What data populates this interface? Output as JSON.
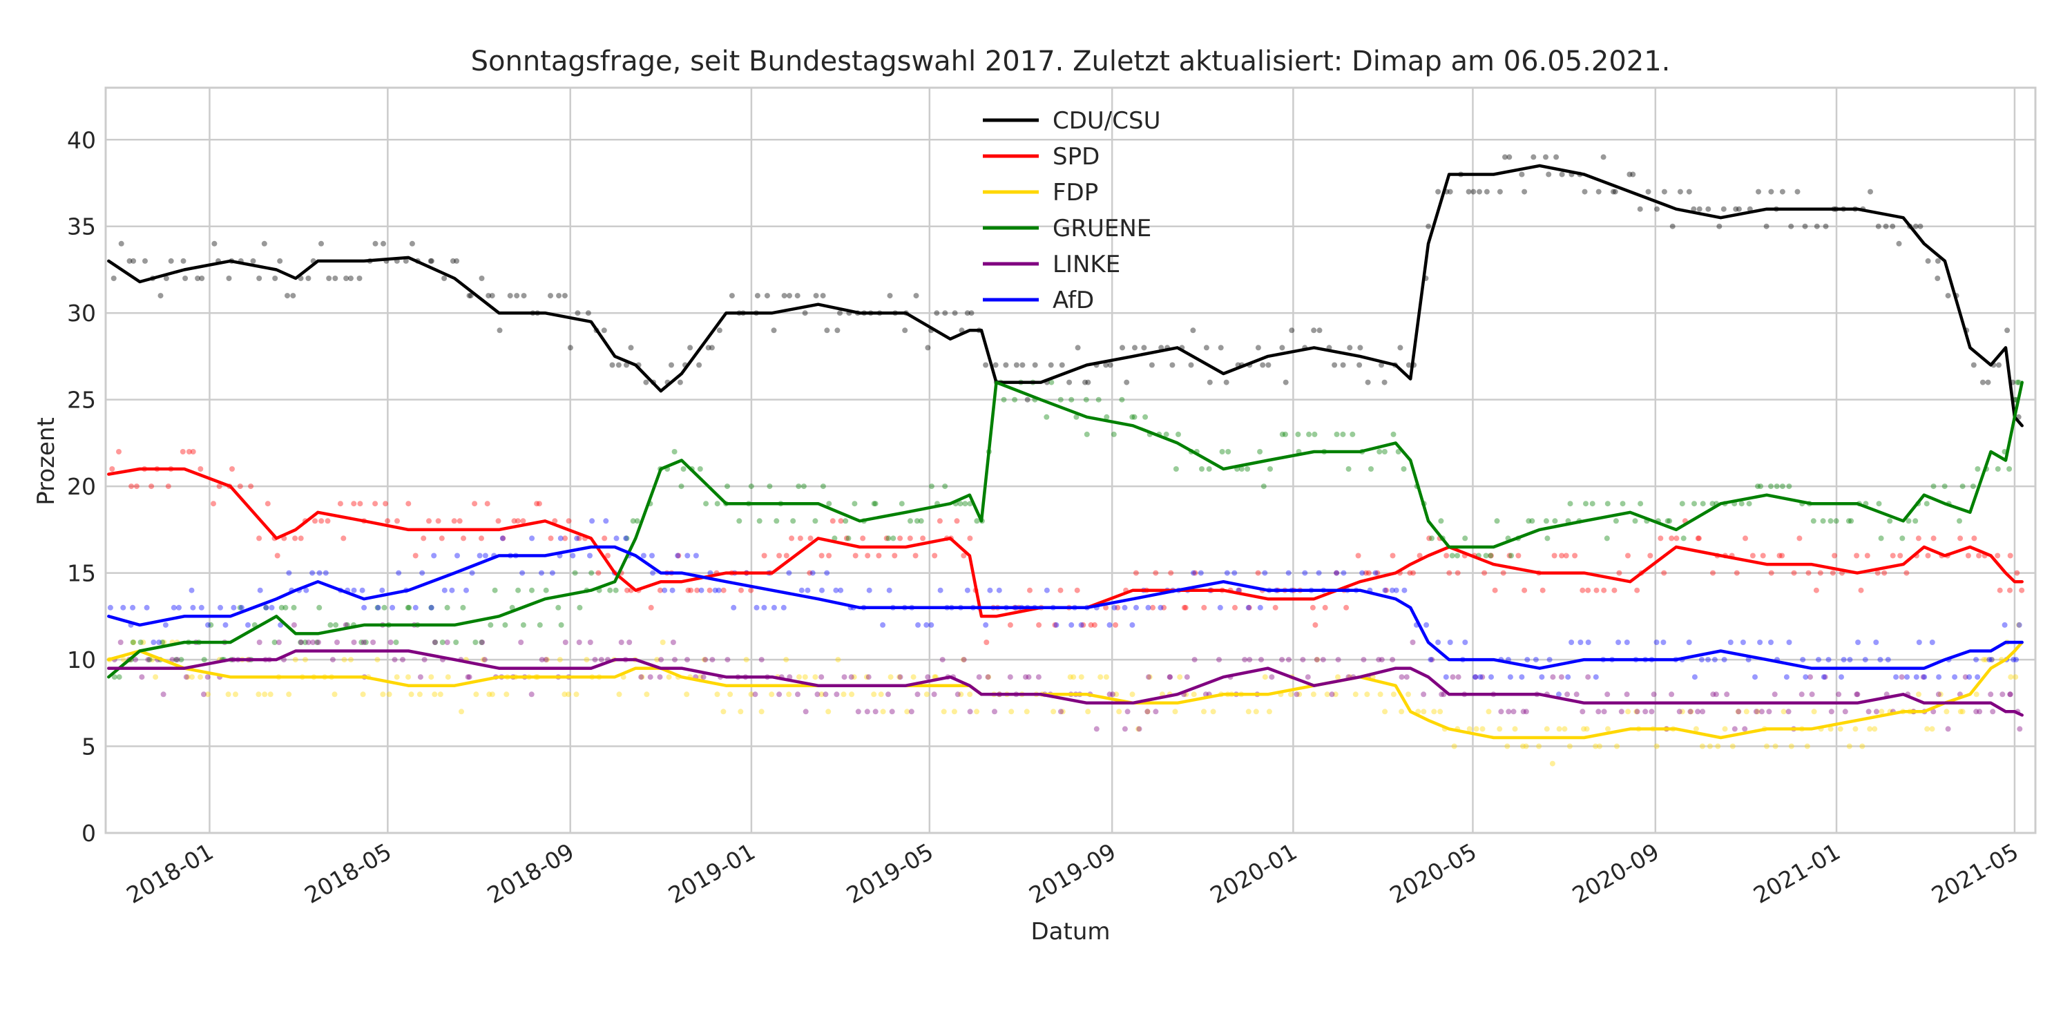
{
  "chart_data": {
    "type": "line",
    "title": "Sonntagsfrage, seit Bundestagswahl 2017. Zuletzt aktualisiert: Dimap am 06.05.2021.",
    "xlabel": "Datum",
    "ylabel": "Prozent",
    "xlim": [
      "2017-10-23",
      "2021-05-15"
    ],
    "ylim": [
      0,
      43
    ],
    "x_ticks": [
      "2018-01",
      "2018-05",
      "2018-09",
      "2019-01",
      "2019-05",
      "2019-09",
      "2020-01",
      "2020-05",
      "2020-09",
      "2021-01",
      "2021-05"
    ],
    "y_ticks": [
      0,
      5,
      10,
      15,
      20,
      25,
      30,
      35,
      40
    ],
    "grid": true,
    "legend_position": "top-center",
    "dates": [
      "2017-10-25",
      "2017-11-15",
      "2017-12-15",
      "2018-01-15",
      "2018-02-15",
      "2018-02-28",
      "2018-03-15",
      "2018-04-15",
      "2018-05-15",
      "2018-06-15",
      "2018-07-15",
      "2018-08-15",
      "2018-09-15",
      "2018-10-01",
      "2018-10-15",
      "2018-11-01",
      "2018-11-15",
      "2018-12-15",
      "2019-01-15",
      "2019-02-15",
      "2019-03-15",
      "2019-04-15",
      "2019-05-15",
      "2019-05-28",
      "2019-06-05",
      "2019-06-15",
      "2019-07-15",
      "2019-08-15",
      "2019-09-15",
      "2019-10-15",
      "2019-11-15",
      "2019-12-15",
      "2020-01-15",
      "2020-02-15",
      "2020-03-10",
      "2020-03-20",
      "2020-04-01",
      "2020-04-15",
      "2020-05-15",
      "2020-06-15",
      "2020-07-15",
      "2020-08-15",
      "2020-09-15",
      "2020-10-15",
      "2020-11-15",
      "2020-12-15",
      "2021-01-15",
      "2021-02-15",
      "2021-03-01",
      "2021-03-15",
      "2021-04-01",
      "2021-04-15",
      "2021-04-25",
      "2021-05-01",
      "2021-05-06"
    ],
    "series": [
      {
        "name": "CDU/CSU",
        "color": "#000000",
        "values": [
          33.0,
          31.8,
          32.5,
          33.0,
          32.5,
          32.0,
          33.0,
          33.0,
          33.2,
          32.0,
          30.0,
          30.0,
          29.5,
          27.5,
          27.0,
          25.5,
          26.5,
          30.0,
          30.0,
          30.5,
          30.0,
          30.0,
          28.5,
          29.0,
          29.0,
          26.0,
          26.0,
          27.0,
          27.5,
          28.0,
          26.5,
          27.5,
          28.0,
          27.5,
          27.0,
          26.2,
          34.0,
          38.0,
          38.0,
          38.5,
          38.0,
          37.0,
          36.0,
          35.5,
          36.0,
          36.0,
          36.0,
          35.5,
          34.0,
          33.0,
          28.0,
          27.0,
          28.0,
          24.0,
          23.5
        ]
      },
      {
        "name": "SPD",
        "color": "#ff0000",
        "values": [
          20.7,
          21.0,
          21.0,
          20.0,
          17.0,
          17.5,
          18.5,
          18.0,
          17.5,
          17.5,
          17.5,
          18.0,
          17.0,
          15.0,
          14.0,
          14.5,
          14.5,
          15.0,
          15.0,
          17.0,
          16.5,
          16.5,
          17.0,
          16.0,
          12.5,
          12.5,
          13.0,
          13.0,
          14.0,
          14.0,
          14.0,
          13.5,
          13.5,
          14.5,
          15.0,
          15.5,
          16.0,
          16.5,
          15.5,
          15.0,
          15.0,
          14.5,
          16.5,
          16.0,
          15.5,
          15.5,
          15.0,
          15.5,
          16.5,
          16.0,
          16.5,
          16.0,
          15.0,
          14.5,
          14.5
        ]
      },
      {
        "name": "FDP",
        "color": "#ffd700",
        "values": [
          10.0,
          10.5,
          9.5,
          9.0,
          9.0,
          9.0,
          9.0,
          9.0,
          8.5,
          8.5,
          9.0,
          9.0,
          9.0,
          9.0,
          9.5,
          9.5,
          9.0,
          8.5,
          8.5,
          8.5,
          8.5,
          8.5,
          8.5,
          8.5,
          8.0,
          8.0,
          8.0,
          8.0,
          7.5,
          7.5,
          8.0,
          8.0,
          8.5,
          9.0,
          8.5,
          7.0,
          6.5,
          6.0,
          5.5,
          5.5,
          5.5,
          6.0,
          6.0,
          5.5,
          6.0,
          6.0,
          6.5,
          7.0,
          7.0,
          7.5,
          8.0,
          9.5,
          10.0,
          10.5,
          11.0
        ]
      },
      {
        "name": "GRUENE",
        "color": "#008000",
        "values": [
          9.0,
          10.5,
          11.0,
          11.0,
          12.5,
          11.5,
          11.5,
          12.0,
          12.0,
          12.0,
          12.5,
          13.5,
          14.0,
          14.5,
          17.0,
          21.0,
          21.5,
          19.0,
          19.0,
          19.0,
          18.0,
          18.5,
          19.0,
          19.5,
          18.0,
          26.0,
          25.0,
          24.0,
          23.5,
          22.5,
          21.0,
          21.5,
          22.0,
          22.0,
          22.5,
          21.5,
          18.0,
          16.5,
          16.5,
          17.5,
          18.0,
          18.5,
          17.5,
          19.0,
          19.5,
          19.0,
          19.0,
          18.0,
          19.5,
          19.0,
          18.5,
          22.0,
          21.5,
          24.0,
          26.0
        ]
      },
      {
        "name": "LINKE",
        "color": "#800080",
        "values": [
          9.5,
          9.5,
          9.5,
          10.0,
          10.0,
          10.5,
          10.5,
          10.5,
          10.5,
          10.0,
          9.5,
          9.5,
          9.5,
          10.0,
          10.0,
          9.5,
          9.5,
          9.0,
          9.0,
          8.5,
          8.5,
          8.5,
          9.0,
          8.5,
          8.0,
          8.0,
          8.0,
          7.5,
          7.5,
          8.0,
          9.0,
          9.5,
          8.5,
          9.0,
          9.5,
          9.5,
          9.0,
          8.0,
          8.0,
          8.0,
          7.5,
          7.5,
          7.5,
          7.5,
          7.5,
          7.5,
          7.5,
          8.0,
          7.5,
          7.5,
          7.5,
          7.5,
          7.0,
          7.0,
          6.8
        ]
      },
      {
        "name": "AfD",
        "color": "#0000ff",
        "values": [
          12.5,
          12.0,
          12.5,
          12.5,
          13.5,
          14.0,
          14.5,
          13.5,
          14.0,
          15.0,
          16.0,
          16.0,
          16.5,
          16.5,
          16.0,
          15.0,
          15.0,
          14.5,
          14.0,
          13.5,
          13.0,
          13.0,
          13.0,
          13.0,
          13.0,
          13.0,
          13.0,
          13.0,
          13.5,
          14.0,
          14.5,
          14.0,
          14.0,
          14.0,
          13.5,
          13.0,
          11.0,
          10.0,
          10.0,
          9.5,
          10.0,
          10.0,
          10.0,
          10.5,
          10.0,
          9.5,
          9.5,
          9.5,
          9.5,
          10.0,
          10.5,
          10.5,
          11.0,
          11.0,
          11.0
        ]
      }
    ]
  }
}
